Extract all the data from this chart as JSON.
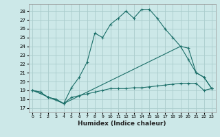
{
  "xlabel": "Humidex (Indice chaleur)",
  "bg_color": "#cce8e8",
  "grid_color": "#aacccc",
  "line_color": "#1a6e68",
  "xlim": [
    -0.5,
    23.5
  ],
  "ylim": [
    16.5,
    28.8
  ],
  "yticks": [
    17,
    18,
    19,
    20,
    21,
    22,
    23,
    24,
    25,
    26,
    27,
    28
  ],
  "xticks": [
    0,
    1,
    2,
    3,
    4,
    5,
    6,
    7,
    8,
    9,
    10,
    11,
    12,
    13,
    14,
    15,
    16,
    17,
    18,
    19,
    20,
    21,
    22,
    23
  ],
  "line_main_x": [
    0,
    1,
    2,
    3,
    4,
    5,
    6,
    7,
    8,
    9,
    10,
    11,
    12,
    13,
    14,
    15,
    16,
    17,
    18,
    19,
    20,
    21,
    22,
    23
  ],
  "line_main_y": [
    19.0,
    18.8,
    18.2,
    18.0,
    17.5,
    19.3,
    20.5,
    22.2,
    25.5,
    25.0,
    26.5,
    27.2,
    28.0,
    27.2,
    28.2,
    28.2,
    27.2,
    26.0,
    25.0,
    24.0,
    23.8,
    21.0,
    20.5,
    19.2
  ],
  "line_diag_x": [
    0,
    4,
    19,
    20,
    21,
    22,
    23
  ],
  "line_diag_y": [
    19.0,
    17.5,
    24.0,
    22.5,
    21.0,
    20.5,
    19.2
  ],
  "line_flat_x": [
    0,
    1,
    2,
    3,
    4,
    5,
    6,
    7,
    8,
    9,
    10,
    11,
    12,
    13,
    14,
    15,
    16,
    17,
    18,
    19,
    20,
    21,
    22,
    23
  ],
  "line_flat_y": [
    19.0,
    18.8,
    18.2,
    18.0,
    17.5,
    18.2,
    18.4,
    18.6,
    18.8,
    19.0,
    19.2,
    19.2,
    19.2,
    19.3,
    19.3,
    19.4,
    19.5,
    19.6,
    19.7,
    19.8,
    19.8,
    19.8,
    19.0,
    19.2
  ]
}
